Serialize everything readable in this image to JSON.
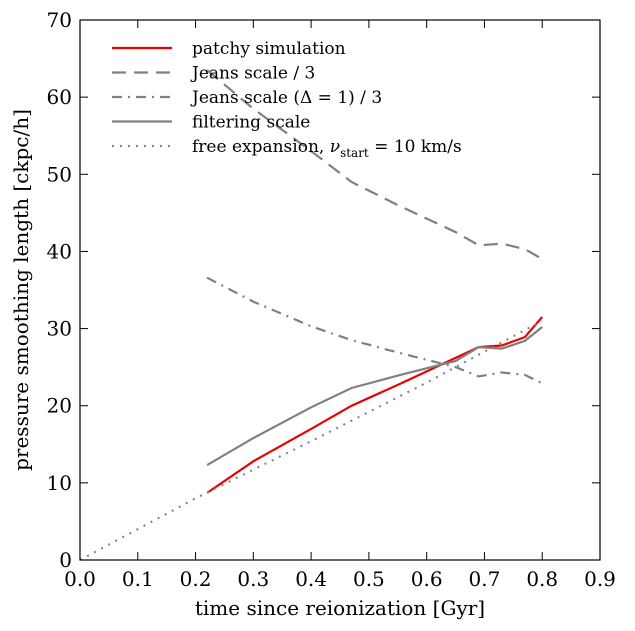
{
  "chart_data": {
    "type": "line",
    "title": "",
    "xlabel": "time since reionization [Gyr]",
    "ylabel": "pressure smoothing length [ckpc/h]",
    "xlim": [
      0.0,
      0.9
    ],
    "ylim": [
      0,
      70
    ],
    "xticks": [
      0.0,
      0.1,
      0.2,
      0.3,
      0.4,
      0.5,
      0.6,
      0.7,
      0.8,
      0.9
    ],
    "xtick_labels": [
      "0.0",
      "0.1",
      "0.2",
      "0.3",
      "0.4",
      "0.5",
      "0.6",
      "0.7",
      "0.8",
      "0.9"
    ],
    "yticks": [
      0,
      10,
      20,
      30,
      40,
      50,
      60,
      70
    ],
    "ytick_labels": [
      "0",
      "10",
      "20",
      "30",
      "40",
      "50",
      "60",
      "70"
    ],
    "grid": false,
    "legend_position": "top-left",
    "series": [
      {
        "name": "patchy simulation",
        "color": "#ee0000",
        "style": "solid",
        "x": [
          0.22,
          0.3,
          0.4,
          0.47,
          0.55,
          0.65,
          0.69,
          0.73,
          0.77,
          0.8
        ],
        "y": [
          8.7,
          12.8,
          17.0,
          20.0,
          22.7,
          26.2,
          27.6,
          27.8,
          28.9,
          31.5
        ]
      },
      {
        "name": "Jeans scale / 3",
        "color": "#808080",
        "style": "dashed",
        "x": [
          0.22,
          0.3,
          0.4,
          0.47,
          0.55,
          0.65,
          0.69,
          0.73,
          0.77,
          0.8
        ],
        "y": [
          63.5,
          58.5,
          53.0,
          49.0,
          46.0,
          42.5,
          40.8,
          41.0,
          40.3,
          39.0
        ]
      },
      {
        "name": "Jeans scale (Δ = 1) / 3",
        "color": "#808080",
        "style": "dashdot",
        "x": [
          0.22,
          0.3,
          0.4,
          0.47,
          0.55,
          0.65,
          0.69,
          0.73,
          0.77,
          0.8
        ],
        "y": [
          36.6,
          33.5,
          30.3,
          28.5,
          26.9,
          25.0,
          23.8,
          24.3,
          24.0,
          22.9
        ]
      },
      {
        "name": "filtering scale",
        "color": "#808080",
        "style": "solid",
        "x": [
          0.22,
          0.3,
          0.4,
          0.47,
          0.55,
          0.65,
          0.69,
          0.73,
          0.77,
          0.8
        ],
        "y": [
          12.3,
          15.8,
          19.8,
          22.3,
          23.9,
          25.8,
          27.6,
          27.4,
          28.4,
          30.2
        ]
      },
      {
        "name": "free expansion, ν_start = 10 km/s",
        "color": "#808080",
        "style": "dotted",
        "x": [
          0.0,
          0.1,
          0.2,
          0.3,
          0.4,
          0.5,
          0.6,
          0.7,
          0.8
        ],
        "y": [
          0.0,
          4.0,
          8.0,
          11.7,
          15.4,
          19.2,
          23.0,
          27.0,
          31.0
        ]
      }
    ]
  },
  "legend": {
    "items": [
      {
        "label": "patchy simulation"
      },
      {
        "label": "Jeans scale / 3"
      },
      {
        "label": "Jeans scale (Δ = 1) / 3"
      },
      {
        "label": "filtering scale"
      },
      {
        "label_main": "free expansion, ",
        "label_nu": "ν",
        "label_sub": "start",
        "label_rest": " = 10 km/s"
      }
    ]
  }
}
